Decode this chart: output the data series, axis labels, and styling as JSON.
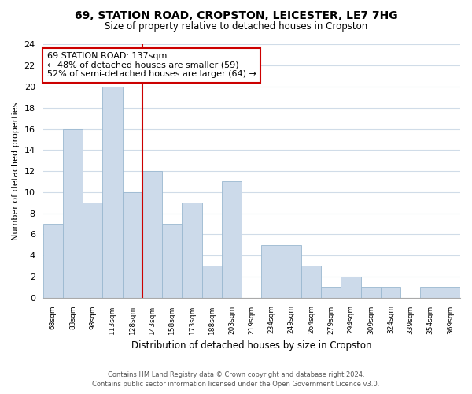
{
  "title": "69, STATION ROAD, CROPSTON, LEICESTER, LE7 7HG",
  "subtitle": "Size of property relative to detached houses in Cropston",
  "xlabel": "Distribution of detached houses by size in Cropston",
  "ylabel": "Number of detached properties",
  "categories": [
    "68sqm",
    "83sqm",
    "98sqm",
    "113sqm",
    "128sqm",
    "143sqm",
    "158sqm",
    "173sqm",
    "188sqm",
    "203sqm",
    "219sqm",
    "234sqm",
    "249sqm",
    "264sqm",
    "279sqm",
    "294sqm",
    "309sqm",
    "324sqm",
    "339sqm",
    "354sqm",
    "369sqm"
  ],
  "values": [
    7,
    16,
    9,
    20,
    10,
    12,
    7,
    9,
    3,
    11,
    0,
    5,
    5,
    3,
    1,
    2,
    1,
    1,
    0,
    1,
    1
  ],
  "bar_color": "#ccdaea",
  "bar_edge_color": "#9ab8d0",
  "ylim": [
    0,
    24
  ],
  "yticks": [
    0,
    2,
    4,
    6,
    8,
    10,
    12,
    14,
    16,
    18,
    20,
    22,
    24
  ],
  "vline_color": "#cc0000",
  "annotation_title": "69 STATION ROAD: 137sqm",
  "annotation_line1": "← 48% of detached houses are smaller (59)",
  "annotation_line2": "52% of semi-detached houses are larger (64) →",
  "annotation_box_color": "#ffffff",
  "annotation_box_edge": "#cc0000",
  "footer1": "Contains HM Land Registry data © Crown copyright and database right 2024.",
  "footer2": "Contains public sector information licensed under the Open Government Licence v3.0.",
  "background_color": "#ffffff",
  "grid_color": "#d0dce8"
}
